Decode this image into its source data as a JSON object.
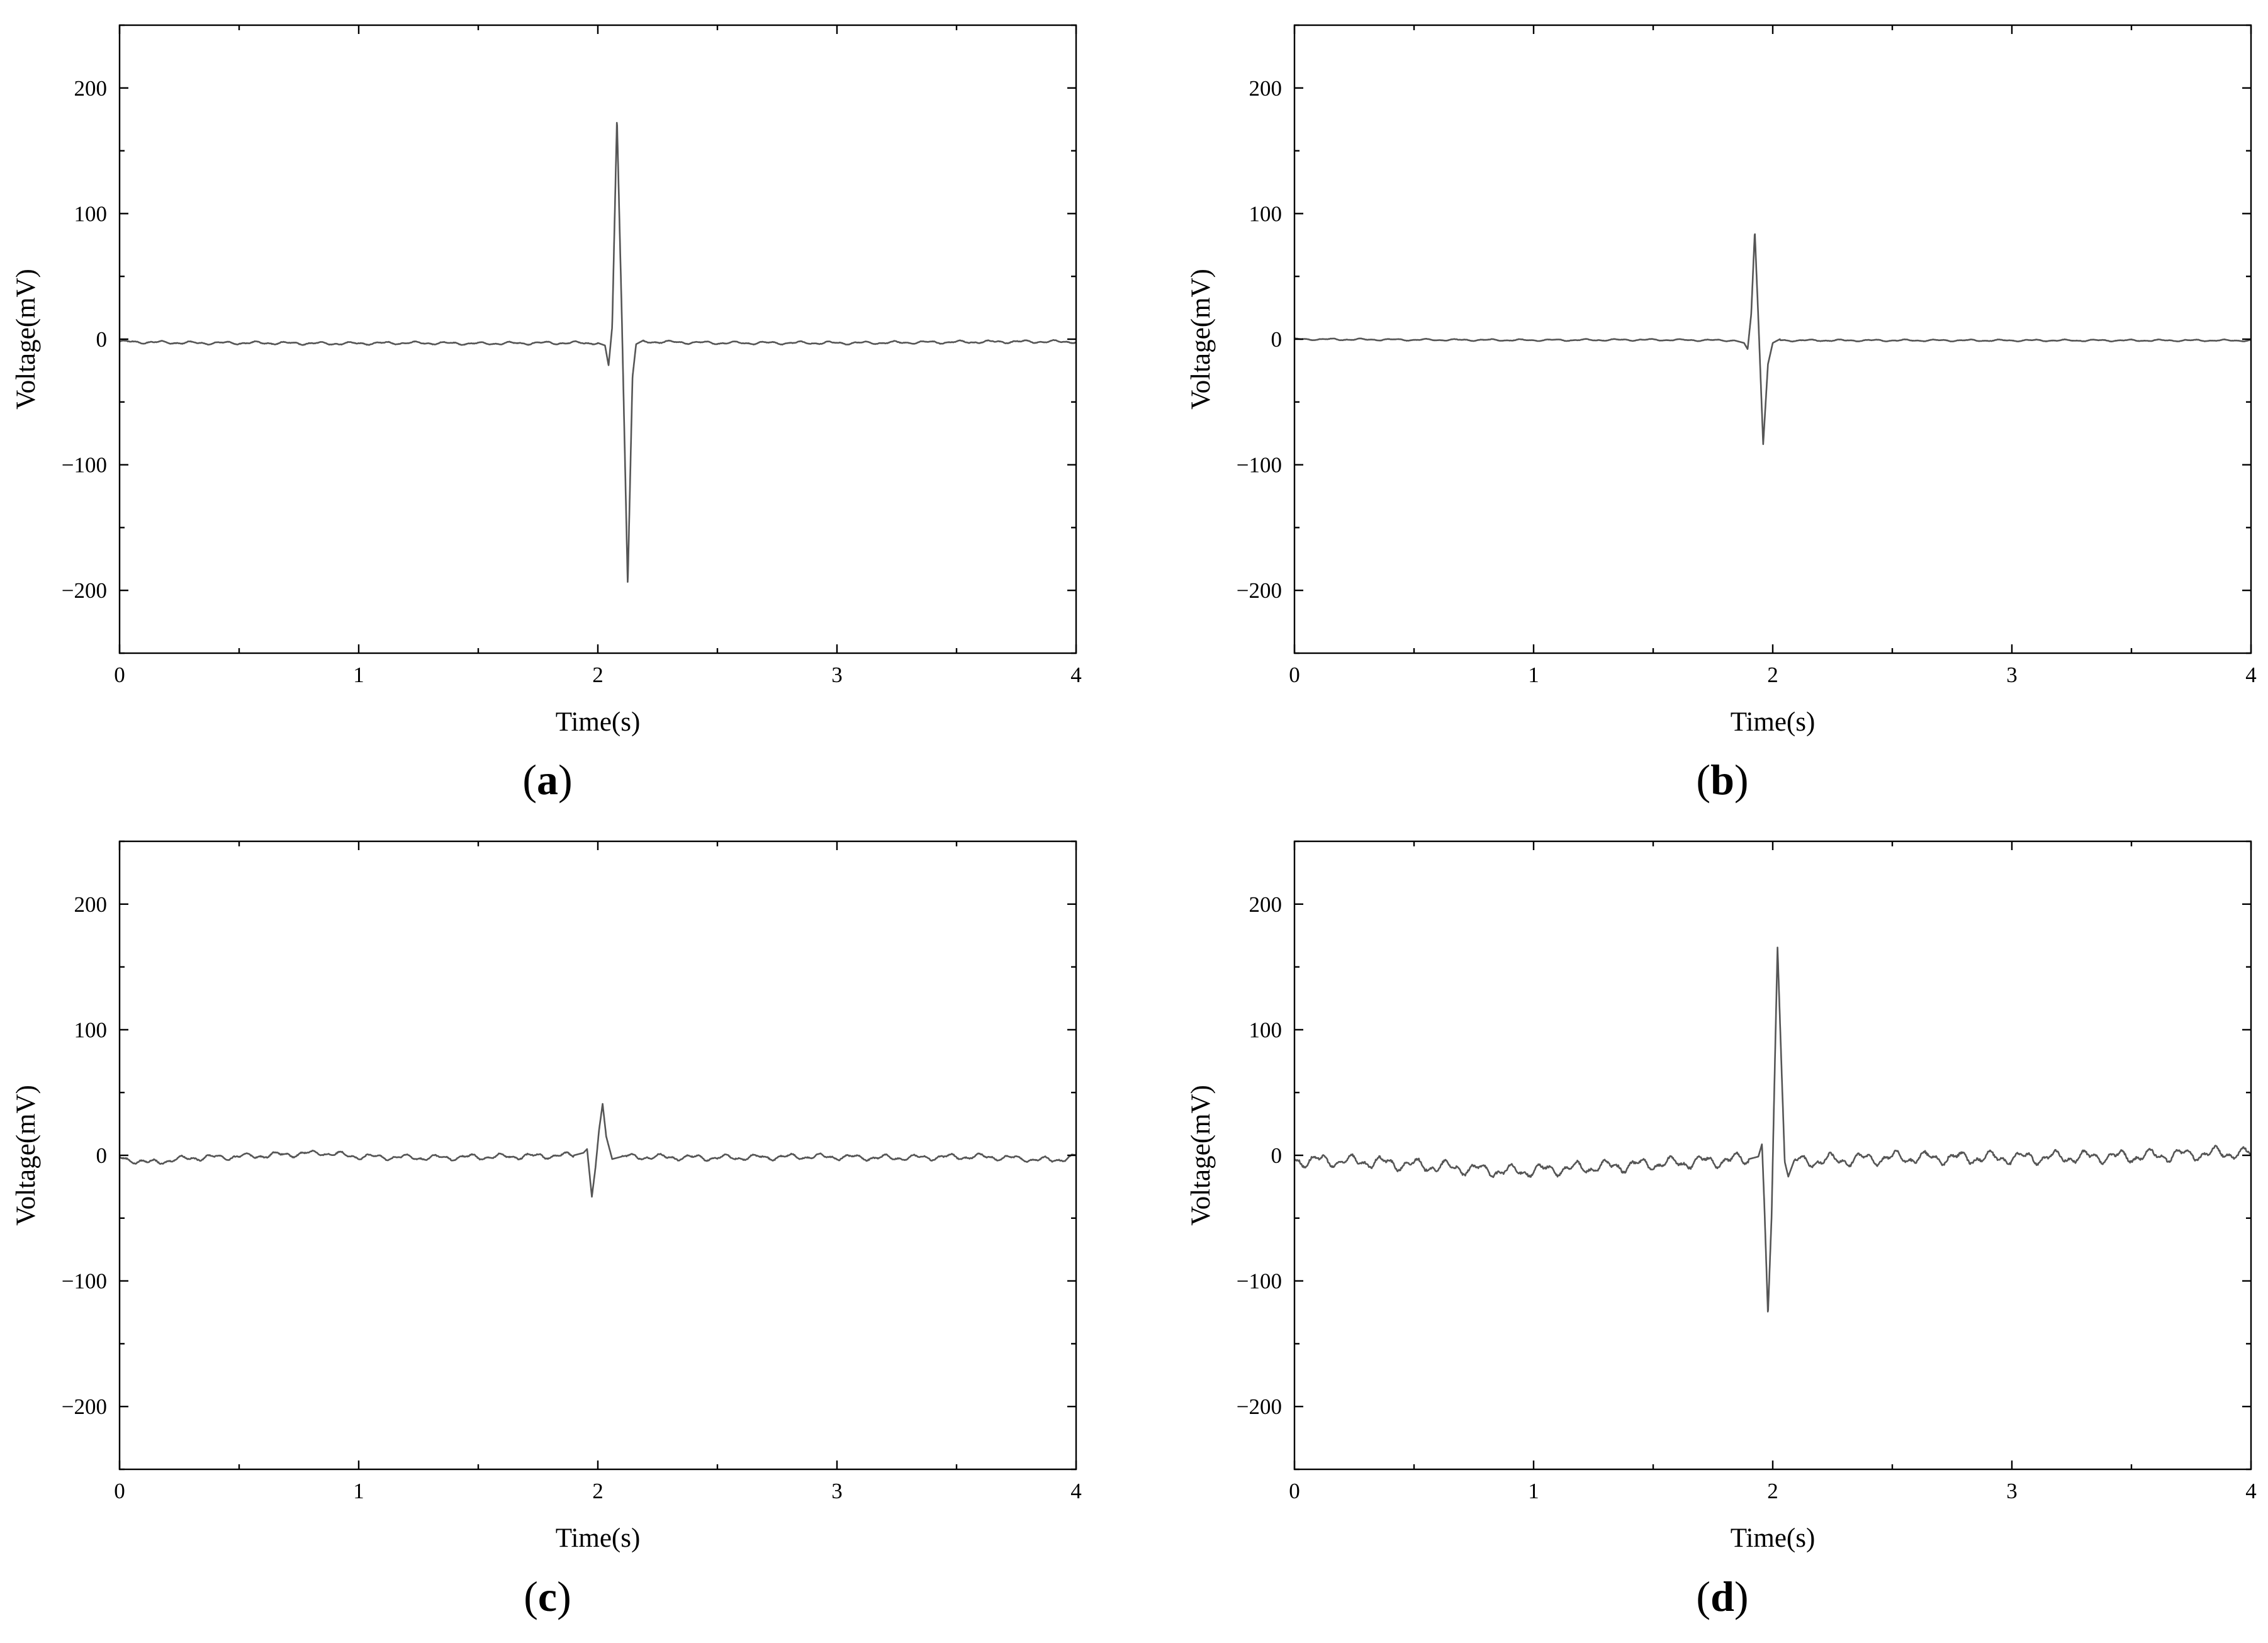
{
  "chart_data": [
    {
      "panel": "a",
      "type": "line",
      "caption_open": "(",
      "caption_letter": "a",
      "caption_close": ")",
      "xlabel": "Time(s)",
      "ylabel": "Voltage(mV)",
      "xlim": [
        0,
        4
      ],
      "ylim": [
        -250,
        250
      ],
      "xticks": [
        0,
        1,
        2,
        3,
        4
      ],
      "xtick_labels": [
        "0",
        "1",
        "2",
        "3",
        "4"
      ],
      "yticks": [
        -200,
        -100,
        0,
        100,
        200
      ],
      "ytick_labels": [
        "−200",
        "−100",
        "0",
        "100",
        "200"
      ],
      "grid": false,
      "baseline": [
        [
          0,
          -2
        ],
        [
          0.3,
          -3
        ],
        [
          0.6,
          -3
        ],
        [
          0.9,
          -3.5
        ],
        [
          1.2,
          -3
        ],
        [
          1.5,
          -3.5
        ],
        [
          1.8,
          -3
        ],
        [
          2.0,
          -3
        ],
        [
          2.2,
          -2
        ],
        [
          2.5,
          -3
        ],
        [
          2.8,
          -3
        ],
        [
          3.1,
          -3
        ],
        [
          3.4,
          -2.5
        ],
        [
          3.7,
          -2
        ],
        [
          4.0,
          -2
        ]
      ],
      "noise": 0.8,
      "spike": [
        [
          2.0,
          -3
        ],
        [
          2.03,
          -5
        ],
        [
          2.045,
          -21
        ],
        [
          2.06,
          10
        ],
        [
          2.08,
          176
        ],
        [
          2.1,
          20
        ],
        [
          2.125,
          -196
        ],
        [
          2.145,
          -30
        ],
        [
          2.16,
          -4
        ],
        [
          2.19,
          -1
        ]
      ]
    },
    {
      "panel": "b",
      "type": "line",
      "caption_open": "(",
      "caption_letter": "b",
      "caption_close": ")",
      "xlabel": "Time(s)",
      "ylabel": "Voltage(mV)",
      "xlim": [
        0,
        4
      ],
      "ylim": [
        -250,
        250
      ],
      "xticks": [
        0,
        1,
        2,
        3,
        4
      ],
      "xtick_labels": [
        "0",
        "1",
        "2",
        "3",
        "4"
      ],
      "yticks": [
        -200,
        -100,
        0,
        100,
        200
      ],
      "ytick_labels": [
        "−200",
        "−100",
        "0",
        "100",
        "200"
      ],
      "grid": false,
      "baseline": [
        [
          0,
          0
        ],
        [
          0.5,
          -0.5
        ],
        [
          1.0,
          -0.8
        ],
        [
          1.5,
          -0.5
        ],
        [
          1.85,
          -1
        ],
        [
          2.2,
          -1
        ],
        [
          2.6,
          -1
        ],
        [
          3.0,
          -1
        ],
        [
          3.5,
          -1
        ],
        [
          4.0,
          -1
        ]
      ],
      "noise": 0.5,
      "spike": [
        [
          1.84,
          -1
        ],
        [
          1.88,
          -3
        ],
        [
          1.895,
          -8
        ],
        [
          1.91,
          20
        ],
        [
          1.925,
          86
        ],
        [
          1.94,
          15
        ],
        [
          1.96,
          -84
        ],
        [
          1.98,
          -20
        ],
        [
          2.0,
          -3
        ],
        [
          2.03,
          0
        ]
      ]
    },
    {
      "panel": "c",
      "type": "line",
      "caption_open": "(",
      "caption_letter": "c",
      "caption_close": ")",
      "xlabel": "Time(s)",
      "ylabel": "Voltage(mV)",
      "xlim": [
        0,
        4
      ],
      "ylim": [
        -250,
        250
      ],
      "xticks": [
        0,
        1,
        2,
        3,
        4
      ],
      "xtick_labels": [
        "0",
        "1",
        "2",
        "3",
        "4"
      ],
      "yticks": [
        -200,
        -100,
        0,
        100,
        200
      ],
      "ytick_labels": [
        "−200",
        "−100",
        "0",
        "100",
        "200"
      ],
      "grid": false,
      "baseline": [
        [
          0,
          -2
        ],
        [
          0.12,
          -6
        ],
        [
          0.3,
          -2
        ],
        [
          0.5,
          -1
        ],
        [
          0.85,
          2
        ],
        [
          1.0,
          -1
        ],
        [
          1.3,
          -2
        ],
        [
          1.6,
          -1
        ],
        [
          1.9,
          0
        ],
        [
          2.1,
          -1
        ],
        [
          2.5,
          -2
        ],
        [
          2.9,
          -1
        ],
        [
          3.2,
          -2
        ],
        [
          3.6,
          -1
        ],
        [
          3.9,
          -4
        ],
        [
          4.0,
          -1
        ]
      ],
      "noise": 1.6,
      "spike": [
        [
          1.9,
          0
        ],
        [
          1.94,
          2
        ],
        [
          1.955,
          5
        ],
        [
          1.975,
          -33
        ],
        [
          1.99,
          -10
        ],
        [
          2.005,
          20
        ],
        [
          2.02,
          41
        ],
        [
          2.035,
          15
        ],
        [
          2.06,
          -3
        ],
        [
          2.1,
          -1
        ]
      ]
    },
    {
      "panel": "d",
      "type": "line",
      "caption_open": "(",
      "caption_letter": "d",
      "caption_close": ")",
      "xlabel": "Time(s)",
      "ylabel": "Voltage(mV)",
      "xlim": [
        0,
        4
      ],
      "ylim": [
        -250,
        250
      ],
      "xticks": [
        0,
        1,
        2,
        3,
        4
      ],
      "xtick_labels": [
        "0",
        "1",
        "2",
        "3",
        "4"
      ],
      "yticks": [
        -200,
        -100,
        0,
        100,
        200
      ],
      "ytick_labels": [
        "−200",
        "−100",
        "0",
        "100",
        "200"
      ],
      "grid": false,
      "baseline": [
        [
          0,
          -4
        ],
        [
          0.3,
          -5
        ],
        [
          0.6,
          -9
        ],
        [
          0.9,
          -13
        ],
        [
          1.2,
          -10
        ],
        [
          1.5,
          -7
        ],
        [
          1.8,
          -4
        ],
        [
          1.9,
          -3
        ],
        [
          2.1,
          -5
        ],
        [
          2.5,
          -2
        ],
        [
          3.0,
          -2
        ],
        [
          3.5,
          -1
        ],
        [
          3.9,
          2
        ],
        [
          4.0,
          1
        ]
      ],
      "noise": 3.5,
      "spike": [
        [
          1.9,
          -3
        ],
        [
          1.94,
          -1
        ],
        [
          1.955,
          9
        ],
        [
          1.965,
          -40
        ],
        [
          1.98,
          -127
        ],
        [
          1.995,
          -50
        ],
        [
          2.005,
          40
        ],
        [
          2.02,
          166
        ],
        [
          2.035,
          80
        ],
        [
          2.05,
          -5
        ],
        [
          2.065,
          -17
        ],
        [
          2.09,
          -4
        ]
      ]
    }
  ]
}
